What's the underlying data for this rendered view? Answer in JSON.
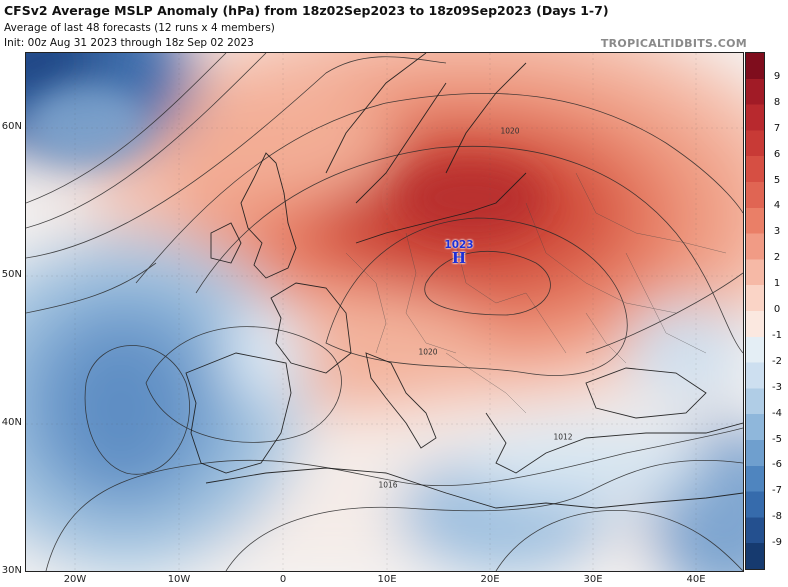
{
  "header": {
    "title": "CFSv2 Average MSLP Anomaly (hPa) from 18z02Sep2023 to 18z09Sep2023 (Days 1-7)",
    "subtitle1": "Average of last 48 forecasts (12 runs x 4 members)",
    "subtitle2": "Init: 00z Aug 31 2023 through 18z Sep 02 2023",
    "brand": "TROPICALTIDBITS.COM"
  },
  "axes": {
    "lat_labels": [
      "60N",
      "50N",
      "40N",
      "30N"
    ],
    "lon_labels": [
      "20W",
      "10W",
      "0",
      "10E",
      "20E",
      "30E",
      "40E"
    ]
  },
  "colorbar": {
    "labels": [
      "9",
      "8",
      "7",
      "6",
      "5",
      "4",
      "3",
      "2",
      "1",
      "0",
      "-1",
      "-2",
      "-3",
      "-4",
      "-5",
      "-6",
      "-7",
      "-8",
      "-9"
    ],
    "colors": [
      "#7f0d1d",
      "#a11b26",
      "#b8292e",
      "#c83a36",
      "#d64f43",
      "#e06553",
      "#ea7f67",
      "#f19b85",
      "#f6b9a6",
      "#fad4c6",
      "#fbe8e0",
      "#e4eef5",
      "#cddff0",
      "#b0cde6",
      "#8fb7db",
      "#6f9fce",
      "#4f85bf",
      "#366bac",
      "#24508f",
      "#163a6f"
    ]
  },
  "high_center": {
    "value": "1023",
    "letter": "H"
  },
  "isobar_labels": [
    "1020",
    "1020",
    "1016",
    "1012"
  ]
}
